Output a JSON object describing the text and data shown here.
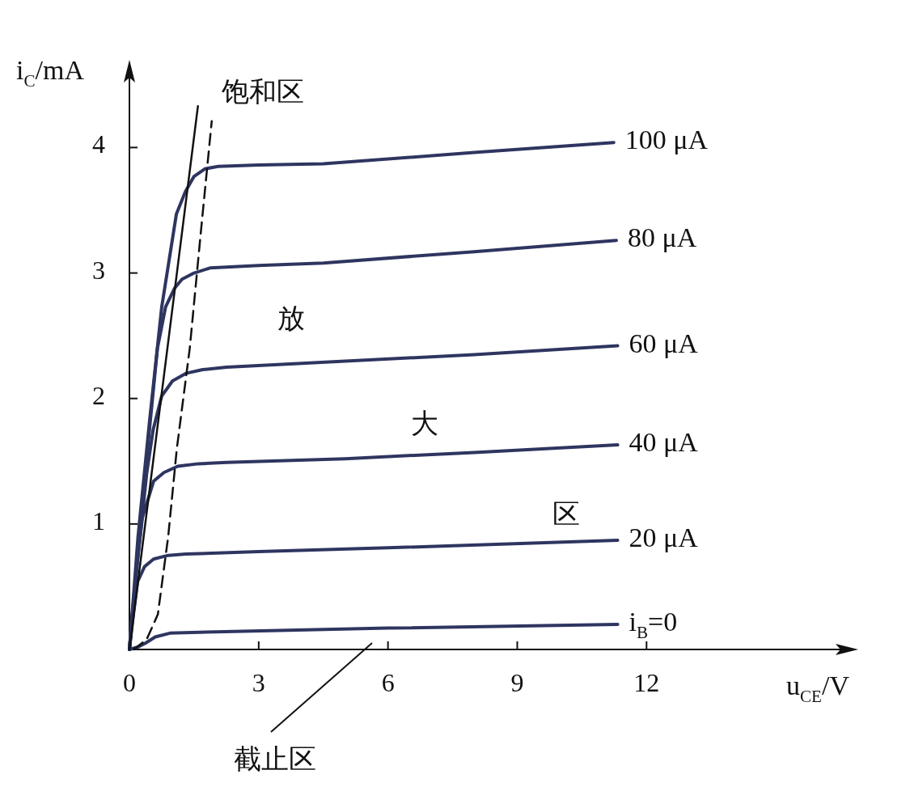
{
  "chart_data": {
    "type": "line",
    "xlabel": "u$_{CE}$/V",
    "ylabel": "i$_{C}$/mA",
    "xlim": [
      0,
      16.8
    ],
    "ylim": [
      0,
      4.66
    ],
    "xticks": [
      0,
      3,
      6,
      9,
      12
    ],
    "yticks": [
      1,
      2,
      3,
      4
    ],
    "grid": false,
    "marker": "none",
    "series": [
      {
        "name": "100 μA",
        "color": "#2e3560",
        "x": [
          0,
          0.2,
          0.47,
          0.75,
          1.09,
          1.3,
          1.5,
          1.75,
          2.06,
          3,
          4.5,
          8,
          11.24
        ],
        "values": [
          0,
          0.9,
          1.83,
          2.73,
          3.47,
          3.65,
          3.77,
          3.83,
          3.85,
          3.86,
          3.87,
          3.96,
          4.04
        ]
      },
      {
        "name": "80 μA",
        "color": "#2e3560",
        "x": [
          0,
          0.2,
          0.45,
          0.65,
          0.84,
          1.05,
          1.22,
          1.5,
          1.87,
          3,
          4.5,
          8,
          11.3
        ],
        "values": [
          0,
          0.8,
          1.7,
          2.4,
          2.73,
          2.88,
          2.95,
          3.0,
          3.04,
          3.06,
          3.08,
          3.17,
          3.26
        ]
      },
      {
        "name": "60 μA",
        "color": "#2e3560",
        "x": [
          0,
          0.2,
          0.4,
          0.55,
          0.75,
          1.0,
          1.31,
          1.7,
          2.25,
          4,
          8,
          11.33
        ],
        "values": [
          0,
          0.75,
          1.4,
          1.75,
          2.02,
          2.14,
          2.2,
          2.23,
          2.25,
          2.28,
          2.35,
          2.42
        ]
      },
      {
        "name": "40 μA",
        "color": "#2e3560",
        "x": [
          0,
          0.15,
          0.3,
          0.56,
          0.8,
          1.12,
          1.6,
          2.25,
          5,
          8,
          11.33
        ],
        "values": [
          0,
          0.6,
          1.05,
          1.34,
          1.41,
          1.46,
          1.48,
          1.49,
          1.52,
          1.57,
          1.63
        ]
      },
      {
        "name": "20 μA",
        "color": "#2e3560",
        "x": [
          0,
          0.1,
          0.19,
          0.35,
          0.56,
          0.9,
          1.31,
          3,
          6,
          11.33
        ],
        "values": [
          0,
          0.3,
          0.54,
          0.66,
          0.72,
          0.75,
          0.76,
          0.78,
          0.81,
          0.87
        ]
      },
      {
        "name": "i$_{B}$=0",
        "color": "#2e3560",
        "x": [
          0,
          0.2,
          0.37,
          0.6,
          0.94,
          2,
          6,
          11.33
        ],
        "values": [
          0,
          0.02,
          0.05,
          0.1,
          0.13,
          0.14,
          0.17,
          0.2
        ]
      },
      {
        "color": "#111111",
        "line_style": "solid",
        "x": [
          0,
          1.59
        ],
        "values": [
          0,
          4.33
        ]
      },
      {
        "color": "#111111",
        "line_style": "dashed",
        "x": [
          0.1,
          0.4,
          0.66,
          0.9,
          1.1,
          1.4,
          1.65,
          1.91
        ],
        "values": [
          0,
          0.08,
          0.28,
          0.9,
          1.6,
          2.4,
          3.3,
          4.21
        ]
      }
    ],
    "annotations": [
      "饱和区",
      "放",
      "大",
      "区",
      "截止区"
    ]
  }
}
